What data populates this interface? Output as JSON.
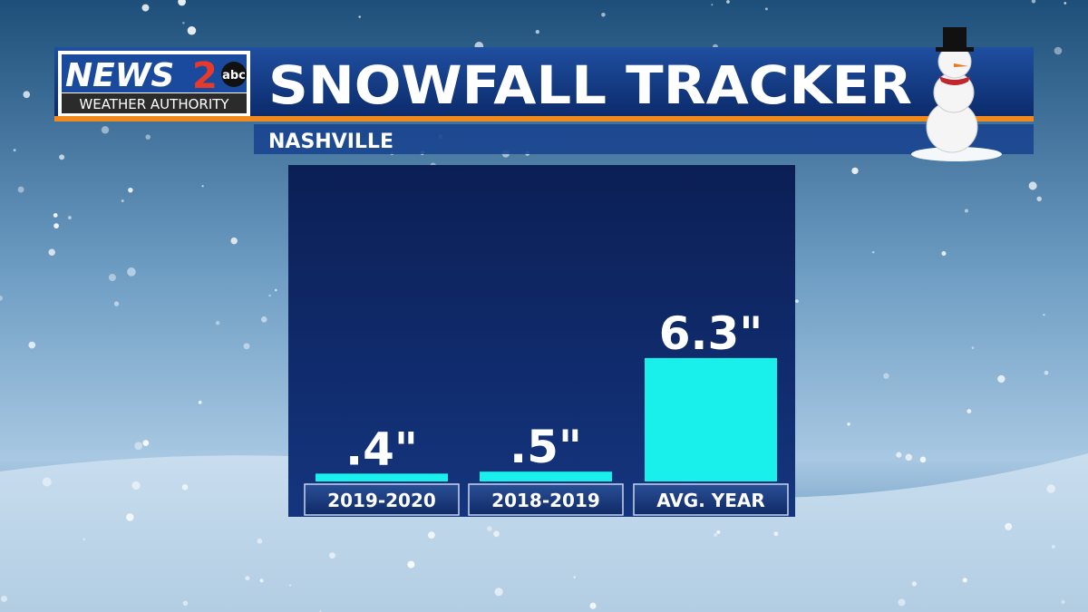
{
  "branding": {
    "name": "NEWS",
    "channel": "2",
    "network": "abc",
    "tagline": "WEATHER AUTHORITY"
  },
  "chart_data": {
    "type": "bar",
    "title": "SNOWFALL TRACKER",
    "subtitle": "NASHVILLE",
    "categories": [
      "2019-2020",
      "2018-2019",
      "AVG. YEAR"
    ],
    "values": [
      0.4,
      0.5,
      6.3
    ],
    "value_labels": [
      ".4\"",
      ".5\"",
      "6.3\""
    ],
    "color": "#19f0ec"
  }
}
